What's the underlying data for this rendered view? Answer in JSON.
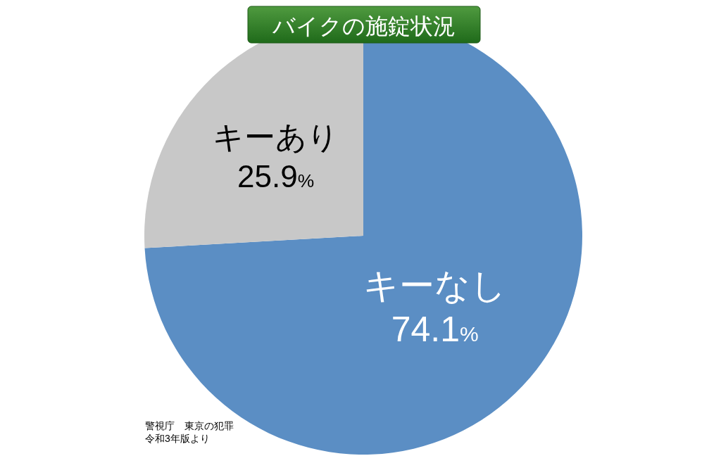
{
  "chart_data": {
    "type": "pie",
    "title": "バイクの施錠状況",
    "categories": [
      "キーなし",
      "キーあり"
    ],
    "values": [
      74.1,
      25.9
    ],
    "colors": [
      "#5b8ec4",
      "#c8c8c8"
    ],
    "value_labels": [
      "74.1%",
      "25.9%"
    ],
    "annotations": [
      "警視庁　東京の犯罪",
      "令和3年版より"
    ]
  }
}
